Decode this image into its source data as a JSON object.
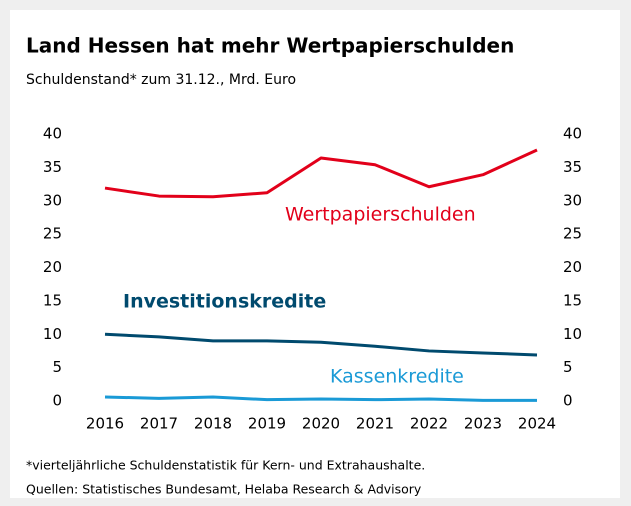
{
  "chart_data": {
    "type": "line",
    "title": "Land Hessen hat mehr Wertpapierschulden",
    "subtitle": "Schuldenstand* zum 31.12., Mrd. Euro",
    "categories": [
      "2016",
      "2017",
      "2018",
      "2019",
      "2020",
      "2021",
      "2022",
      "2023",
      "2024"
    ],
    "series": [
      {
        "name": "Wertpapierschulden",
        "color": "#e2001a",
        "values": [
          31.9,
          30.7,
          30.6,
          31.2,
          36.4,
          35.4,
          32.1,
          33.9,
          37.6
        ]
      },
      {
        "name": "Investitionskredite",
        "color": "#004a6e",
        "values": [
          10.0,
          9.6,
          9.0,
          9.0,
          8.8,
          8.2,
          7.5,
          7.2,
          6.9
        ]
      },
      {
        "name": "Kassenkredite",
        "color": "#1a9ad6",
        "values": [
          0.6,
          0.4,
          0.6,
          0.2,
          0.3,
          0.2,
          0.3,
          0.1,
          0.1
        ]
      }
    ],
    "ylim": [
      0,
      40
    ],
    "yticks": [
      0,
      5,
      10,
      15,
      20,
      25,
      30,
      35,
      40
    ],
    "y2lim": [
      0,
      40
    ],
    "y2ticks": [
      0,
      5,
      10,
      15,
      20,
      25,
      30,
      35,
      40
    ],
    "grid": false,
    "footnote": "*vierteljährliche Schuldenstatistik für Kern- und Extrahaushalte.",
    "source": "Quellen: Statistisches Bundesamt, Helaba Research & Advisory"
  }
}
